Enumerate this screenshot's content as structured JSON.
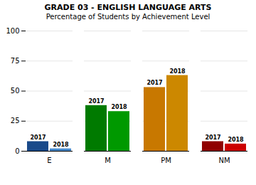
{
  "chart_data": {
    "type": "bar",
    "title": "GRADE 03 - ENGLISH LANGUAGE ARTS",
    "subtitle": "Percentage of Students by Achievement Level",
    "categories": [
      "E",
      "M",
      "PM",
      "NM"
    ],
    "series": [
      {
        "name": "2017",
        "values": [
          8,
          38,
          53,
          8
        ],
        "colors": [
          "#1a4a8a",
          "#007a00",
          "#c87800",
          "#900000"
        ]
      },
      {
        "name": "2018",
        "values": [
          2,
          33,
          63,
          6
        ],
        "colors": [
          "#4488cc",
          "#009900",
          "#cc8800",
          "#cc0000"
        ]
      }
    ],
    "ylim": [
      0,
      100
    ],
    "yticks": [
      0,
      25,
      50,
      75,
      100
    ],
    "grid": true
  }
}
